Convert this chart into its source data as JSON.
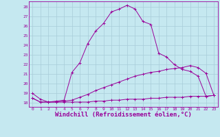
{
  "background_color": "#c5e8f0",
  "grid_color": "#a8ccd8",
  "line_color": "#990099",
  "xlabel": "Windchill (Refroidissement éolien,°C)",
  "xlabel_fontsize": 6.5,
  "ytick_labels": [
    "18",
    "19",
    "20",
    "21",
    "22",
    "23",
    "24",
    "25",
    "26",
    "27",
    "28"
  ],
  "ytick_vals": [
    18,
    19,
    20,
    21,
    22,
    23,
    24,
    25,
    26,
    27,
    28
  ],
  "xlim": [
    -0.5,
    23.5
  ],
  "ylim": [
    17.6,
    28.6
  ],
  "series1_x": [
    0,
    1,
    2,
    3,
    4,
    5,
    6,
    7,
    8,
    9,
    10,
    11,
    12,
    13,
    14,
    15,
    16,
    17,
    18,
    19,
    20,
    21,
    22,
    23
  ],
  "series1_y": [
    19.0,
    18.4,
    18.1,
    18.2,
    18.3,
    21.2,
    22.2,
    24.2,
    25.5,
    26.3,
    27.5,
    27.8,
    28.2,
    27.8,
    26.5,
    26.2,
    23.2,
    22.8,
    22.0,
    21.5,
    21.3,
    20.8,
    18.7,
    18.8
  ],
  "series2_x": [
    0,
    1,
    2,
    3,
    4,
    5,
    6,
    7,
    8,
    9,
    10,
    11,
    12,
    13,
    14,
    15,
    16,
    17,
    18,
    19,
    20,
    21,
    22,
    23
  ],
  "series2_y": [
    18.5,
    18.1,
    18.1,
    18.1,
    18.2,
    18.3,
    18.6,
    18.9,
    19.3,
    19.6,
    19.9,
    20.2,
    20.5,
    20.8,
    21.0,
    21.2,
    21.3,
    21.5,
    21.6,
    21.7,
    21.9,
    21.7,
    21.1,
    18.8
  ],
  "series3_x": [
    0,
    1,
    2,
    3,
    4,
    5,
    6,
    7,
    8,
    9,
    10,
    11,
    12,
    13,
    14,
    15,
    16,
    17,
    18,
    19,
    20,
    21,
    22,
    23
  ],
  "series3_y": [
    18.5,
    18.1,
    18.1,
    18.1,
    18.1,
    18.1,
    18.1,
    18.1,
    18.2,
    18.2,
    18.3,
    18.3,
    18.4,
    18.4,
    18.4,
    18.5,
    18.5,
    18.6,
    18.6,
    18.6,
    18.7,
    18.7,
    18.7,
    18.8
  ]
}
